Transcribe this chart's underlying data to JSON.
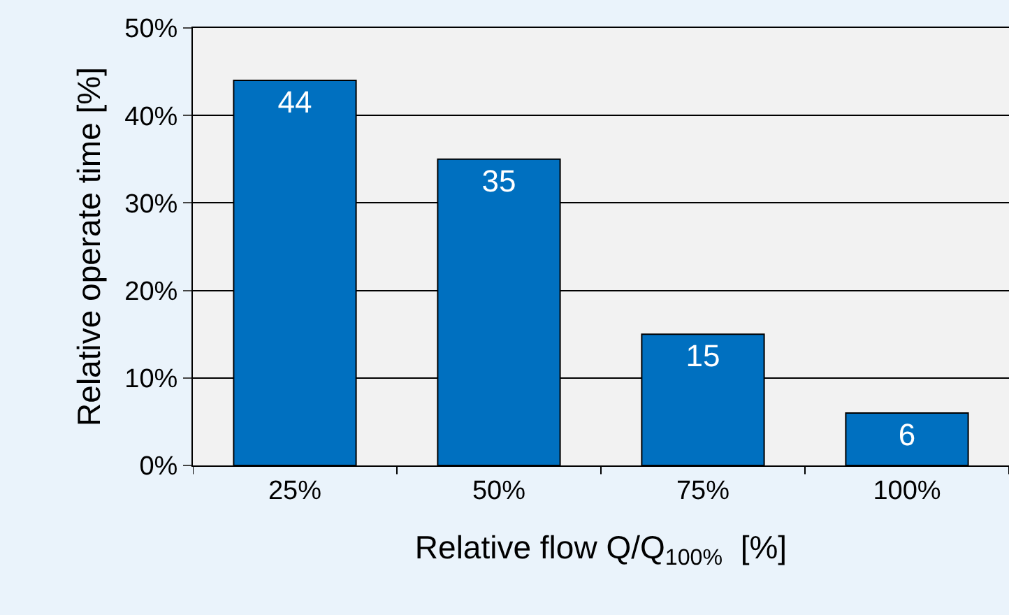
{
  "chart_data": {
    "type": "bar",
    "xlabel": "Relative flow Q/Q$_{100%}$  [%]",
    "ylabel": "Relative operate time [%]",
    "categories": [
      "25%",
      "50%",
      "75%",
      "100%"
    ],
    "values": [
      44,
      35,
      15,
      6
    ],
    "color": "#0070c0",
    "data_labels": true,
    "ylim": [
      0,
      50
    ],
    "yticks": [
      {
        "value": 0,
        "label": "0%"
      },
      {
        "value": 10,
        "label": "10%"
      },
      {
        "value": 20,
        "label": "20%"
      },
      {
        "value": 30,
        "label": "30%"
      },
      {
        "value": 40,
        "label": "40%"
      },
      {
        "value": 50,
        "label": "50%"
      }
    ],
    "grid": "y",
    "legend": false
  }
}
